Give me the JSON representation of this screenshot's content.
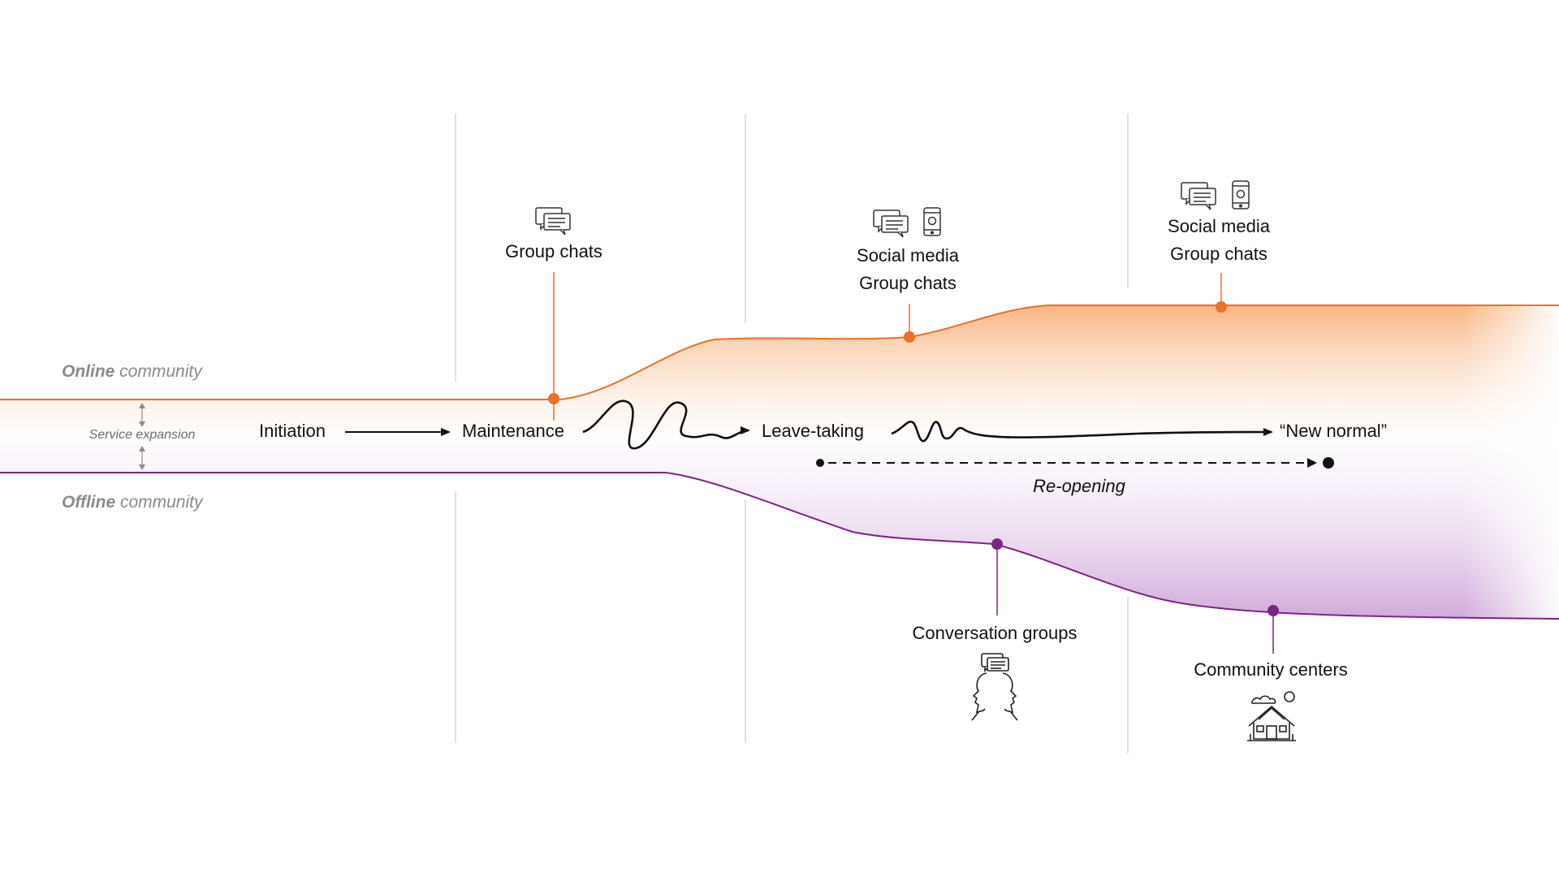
{
  "communities": {
    "online": {
      "bold": "Online",
      "rest": " community"
    },
    "offline": {
      "bold": "Offline",
      "rest": " community"
    },
    "gap_label": "Service expansion"
  },
  "stages": {
    "initiation": "Initiation",
    "maintenance": "Maintenance",
    "leave_taking": "Leave-taking",
    "new_normal": "“New normal”",
    "reopening": "Re-opening"
  },
  "online_annotations": {
    "a1": {
      "line1": "Group chats"
    },
    "a2": {
      "line1": "Social media",
      "line2": "Group chats"
    },
    "a3": {
      "line1": "Social media",
      "line2": "Group chats"
    }
  },
  "offline_annotations": {
    "b1": {
      "line1": "Conversation groups"
    },
    "b2": {
      "line1": "Community centers"
    }
  },
  "icons": [
    "chat-bubbles-icon",
    "smartphone-icon",
    "talking-faces-icon",
    "community-house-icon"
  ],
  "colors": {
    "online": "#e8712b",
    "offline": "#7b2583",
    "online_fill": "#f9c7a3",
    "offline_fill": "#d6b5dd",
    "divider": "#cfcfcf",
    "text": "#111111",
    "muted": "#8a8a8a"
  }
}
